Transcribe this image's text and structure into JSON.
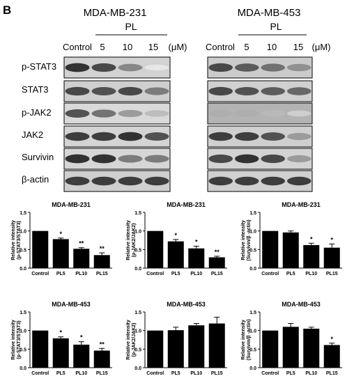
{
  "panel_letter": "B",
  "blot": {
    "cell_lines": [
      "MDA-MB-231",
      "MDA-MB-453"
    ],
    "treatment_label": "PL",
    "lane_labels": [
      "Control",
      "5",
      "10",
      "15"
    ],
    "unit": "(μM)",
    "proteins": [
      "p-STAT3",
      "STAT3",
      "p-JAK2",
      "JAK2",
      "Survivin",
      "β-actin"
    ],
    "membranes": [
      {
        "cell_line": "MDA-MB-231",
        "bg": [
          "#d2d2d2",
          "#cfcfcf",
          "#d9d9d9",
          "#d4d4d4",
          "#d6d6d6",
          "#cfcfcf"
        ],
        "band_intensity": [
          [
            0.95,
            0.85,
            0.55,
            0.1
          ],
          [
            0.85,
            0.8,
            0.85,
            0.6
          ],
          [
            0.8,
            0.65,
            0.45,
            0.3
          ],
          [
            0.9,
            0.9,
            0.95,
            0.8
          ],
          [
            0.95,
            0.95,
            0.6,
            0.6
          ],
          [
            0.9,
            0.9,
            0.9,
            0.9
          ]
        ]
      },
      {
        "cell_line": "MDA-MB-453",
        "bg": [
          "#cbcbcb",
          "#d0d0d0",
          "#b3b3b3",
          "#cfcfcf",
          "#d3d3d3",
          "#d0d0d0"
        ],
        "band_intensity": [
          [
            0.85,
            0.75,
            0.65,
            0.5
          ],
          [
            0.85,
            0.8,
            0.75,
            0.7
          ],
          [
            0.35,
            0.35,
            0.3,
            0.2
          ],
          [
            0.9,
            0.9,
            0.8,
            0.45
          ],
          [
            0.85,
            0.95,
            0.85,
            0.45
          ],
          [
            0.9,
            0.9,
            0.9,
            0.9
          ]
        ]
      }
    ]
  },
  "chart_data": [
    {
      "type": "bar",
      "title": "MDA-MB-231",
      "categories": [
        "Control",
        "PL5",
        "PL10",
        "PL15"
      ],
      "values": [
        1.0,
        0.78,
        0.52,
        0.35
      ],
      "errors": [
        0,
        0.03,
        0.03,
        0.06
      ],
      "significance": [
        "",
        "*",
        "**",
        "**"
      ],
      "ylabel": "Relative intensity\n(p-STAT3/STAT3)",
      "ylim": [
        0,
        1.5
      ],
      "yticks": [
        "0.0",
        "0.5",
        "1.0",
        "1.5"
      ]
    },
    {
      "type": "bar",
      "title": "MDA-MB-231",
      "categories": [
        "Control",
        "PL5",
        "PL10",
        "PL15"
      ],
      "values": [
        1.0,
        0.72,
        0.53,
        0.29
      ],
      "errors": [
        0,
        0.05,
        0.06,
        0.03
      ],
      "significance": [
        "",
        "*",
        "*",
        "**"
      ],
      "ylabel": "Relative intensity\n(p-JAK2/JAK2)",
      "ylim": [
        0,
        1.5
      ],
      "yticks": [
        "0.0",
        "0.5",
        "1.0",
        "1.5"
      ]
    },
    {
      "type": "bar",
      "title": "MDA-MB-231",
      "categories": [
        "Control",
        "PL5",
        "PL10",
        "PL15"
      ],
      "values": [
        1.0,
        0.96,
        0.62,
        0.55
      ],
      "errors": [
        0,
        0.04,
        0.05,
        0.1
      ],
      "significance": [
        "",
        "",
        "*",
        "*"
      ],
      "ylabel": "Relative intensity\n(Survivin/β -actin)",
      "ylim": [
        0,
        1.5
      ],
      "yticks": [
        "0.0",
        "0.5",
        "1.0",
        "1.5"
      ]
    },
    {
      "type": "bar",
      "title": "MDA-MB-453",
      "categories": [
        "Control",
        "PL5",
        "PL10",
        "PL15"
      ],
      "values": [
        1.0,
        0.79,
        0.62,
        0.46
      ],
      "errors": [
        0,
        0.04,
        0.08,
        0.06
      ],
      "significance": [
        "",
        "*",
        "*",
        "**"
      ],
      "ylabel": "Relative intensity\n(p-STAT3/STAT3)",
      "ylim": [
        0,
        1.5
      ],
      "yticks": [
        "0.0",
        "0.5",
        "1.0",
        "1.5"
      ]
    },
    {
      "type": "bar",
      "title": "MDA-MB-453",
      "categories": [
        "Control",
        "PL5",
        "PL10",
        "PL15"
      ],
      "values": [
        1.0,
        1.01,
        1.14,
        1.19
      ],
      "errors": [
        0,
        0.08,
        0.05,
        0.17
      ],
      "significance": [
        "",
        "",
        "",
        ""
      ],
      "ylabel": "Relative intensity\n(p-JAK2/JAK2)",
      "ylim": [
        0,
        1.5
      ],
      "yticks": [
        "0.0",
        "0.5",
        "1.0",
        "1.5"
      ]
    },
    {
      "type": "bar",
      "title": "MDA-MB-453",
      "categories": [
        "Control",
        "PL5",
        "PL10",
        "PL15"
      ],
      "values": [
        1.0,
        1.1,
        1.05,
        0.61
      ],
      "errors": [
        0,
        0.09,
        0.04,
        0.05
      ],
      "significance": [
        "",
        "",
        "",
        "*"
      ],
      "ylabel": "Relative intensity\n(Survivin/β -actin)",
      "ylim": [
        0,
        1.5
      ],
      "yticks": [
        "0.0",
        "0.5",
        "1.0",
        "1.5"
      ]
    }
  ]
}
